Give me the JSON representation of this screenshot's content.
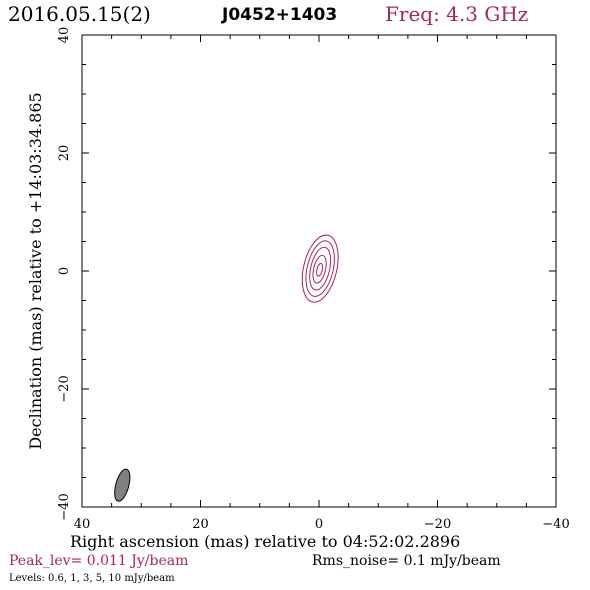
{
  "header": {
    "date": "2016.05.15(2)",
    "source": "J0452+1403",
    "freq": "Freq: 4.3 GHz"
  },
  "footer": {
    "peak": "Peak_lev=  0.011 Jy/beam",
    "rms": "Rms_noise=   0.1 mJy/beam",
    "levels": "Levels: 0.6,    1,    3,    5,   10 mJy/beam"
  },
  "colors": {
    "contour": "#a8284e",
    "beam": "#808080",
    "axis": "#000000"
  },
  "chart_data": {
    "type": "contour",
    "xlabel": "Right ascension (mas) relative to 04:52:02.2896",
    "ylabel": "Declination (mas) relative to +14:03:34.865",
    "xlim": [
      40,
      -40
    ],
    "ylim": [
      -40,
      40
    ],
    "x_ticks": [
      40,
      20,
      0,
      -20,
      -40
    ],
    "y_ticks": [
      40,
      20,
      0,
      -20,
      -40
    ],
    "x_tick_labels": [
      "40",
      "20",
      "0",
      "−20",
      "−40"
    ],
    "y_tick_labels": [
      "40",
      "20",
      "0",
      "−20",
      "−40"
    ],
    "contour_levels_mJy": [
      0.6,
      1,
      3,
      5,
      10
    ],
    "contours": [
      {
        "level": 0.6,
        "cx": -0.2,
        "cy": 0.4,
        "major": 11.6,
        "minor": 5.6,
        "pa_deg": 13
      },
      {
        "level": 1,
        "cx": -0.2,
        "cy": 0.4,
        "major": 9.6,
        "minor": 4.4,
        "pa_deg": 13
      },
      {
        "level": 3,
        "cx": -0.2,
        "cy": 0.4,
        "major": 7.4,
        "minor": 3.2,
        "pa_deg": 13
      },
      {
        "level": 5,
        "cx": -0.1,
        "cy": 0.3,
        "major": 4.8,
        "minor": 2.0,
        "pa_deg": 13
      },
      {
        "level": 10,
        "cx": -0.1,
        "cy": 0.2,
        "major": 2.2,
        "minor": 0.9,
        "pa_deg": 13
      }
    ],
    "beam": {
      "cx": 33.2,
      "cy": -36.3,
      "major": 5.6,
      "minor": 2.2,
      "pa_deg": 15
    }
  }
}
